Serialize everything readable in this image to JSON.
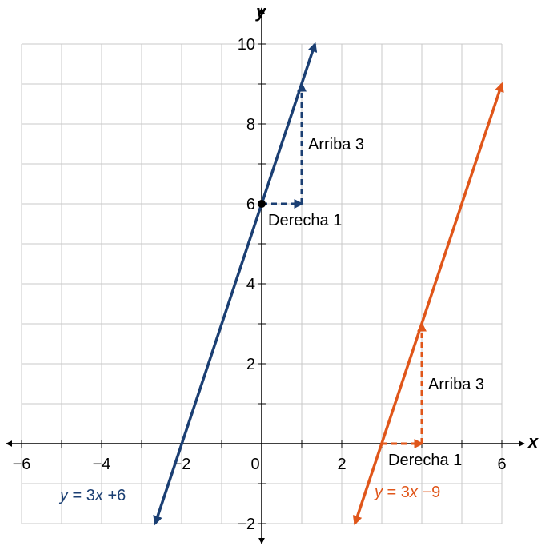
{
  "chart_data": {
    "type": "line",
    "title": "",
    "xlabel": "x",
    "ylabel": "y",
    "xlim": [
      -6,
      6
    ],
    "ylim": [
      -2,
      10
    ],
    "grid": true,
    "x_ticks": [
      -6,
      -4,
      -2,
      0,
      2,
      6
    ],
    "x_tick_labels": [
      "−6",
      "−4",
      "−2",
      "0",
      "2",
      "6"
    ],
    "y_ticks": [
      -2,
      2,
      4,
      6,
      8,
      10
    ],
    "y_tick_labels": [
      "−2",
      "2",
      "4",
      "6",
      "8",
      "10"
    ],
    "series": [
      {
        "name": "y = 3x + 6",
        "color": "#1b3f73",
        "x": [
          -2.66,
          1.33
        ],
        "y": [
          -2,
          10
        ],
        "label_parts": [
          "y",
          " = 3",
          "x",
          " +6"
        ]
      },
      {
        "name": "y = 3x − 9",
        "color": "#e0561a",
        "x": [
          2.33,
          6
        ],
        "y": [
          -2,
          9
        ],
        "label_parts": [
          "y",
          " = 3",
          "x",
          " −9"
        ]
      }
    ],
    "points": [
      {
        "x": 0,
        "y": 6,
        "color": "#000000"
      }
    ],
    "annotations": [
      {
        "type": "arrow",
        "color": "#1b3f73",
        "from": [
          0,
          6
        ],
        "to": [
          1,
          6
        ],
        "text": "Derecha 1"
      },
      {
        "type": "arrow",
        "color": "#1b3f73",
        "from": [
          1,
          6
        ],
        "to": [
          1,
          9
        ],
        "text": "Arriba 3"
      },
      {
        "type": "arrow",
        "color": "#e0561a",
        "from": [
          3,
          0
        ],
        "to": [
          4,
          0
        ],
        "text": "Derecha 1"
      },
      {
        "type": "arrow",
        "color": "#e0561a",
        "from": [
          4,
          0
        ],
        "to": [
          4,
          3
        ],
        "text": "Arriba 3"
      }
    ]
  }
}
